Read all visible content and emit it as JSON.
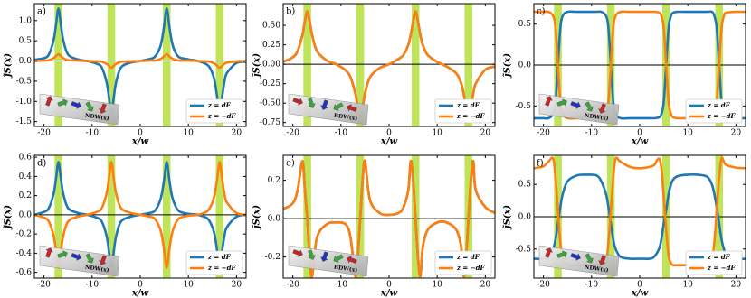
{
  "chart_data": [
    {
      "type": "line",
      "panel_label": "a)",
      "x_label": "x/w",
      "y_label": "j̃S(x)",
      "inset_label": "NDW(x)",
      "x": [
        -22,
        -20,
        -19,
        -18,
        -17.5,
        -17,
        -16.5,
        -16,
        -15,
        -13,
        -11,
        -9,
        -8,
        -7,
        -6.5,
        -6,
        -5.5,
        -5,
        -4,
        -2,
        0,
        2,
        3,
        4,
        4.5,
        5,
        5.5,
        6,
        6.5,
        7,
        8,
        10,
        12,
        14,
        15,
        15.5,
        16,
        16.5,
        17,
        17.5,
        18,
        20,
        22
      ],
      "series": [
        {
          "name": "z = dF",
          "color": "#1f77b4",
          "values": [
            0.03,
            0.07,
            0.16,
            0.52,
            0.9,
            1.3,
            0.9,
            0.52,
            0.16,
            0.04,
            0,
            -0.07,
            -0.16,
            -0.52,
            -0.9,
            -1.3,
            -0.9,
            -0.52,
            -0.16,
            -0.04,
            0,
            0.05,
            0.1,
            0.3,
            0.52,
            0.9,
            1.3,
            0.9,
            0.52,
            0.3,
            0.1,
            0.04,
            0,
            -0.1,
            -0.3,
            -0.52,
            -0.9,
            -1.3,
            -0.9,
            -0.52,
            -0.3,
            -0.05,
            -0.02
          ]
        },
        {
          "name": "z = −dF",
          "color": "#ff7f0e",
          "values": [
            0,
            0.01,
            0.02,
            0.07,
            0.12,
            0.17,
            0.12,
            0.07,
            0.02,
            0.01,
            0,
            -0.01,
            -0.02,
            -0.07,
            -0.12,
            -0.17,
            -0.12,
            -0.07,
            -0.02,
            -0.01,
            0,
            0.01,
            0.01,
            0.04,
            0.07,
            0.12,
            0.17,
            0.12,
            0.07,
            0.04,
            0.01,
            0.01,
            0,
            -0.01,
            -0.04,
            -0.07,
            -0.12,
            -0.17,
            -0.12,
            -0.07,
            -0.04,
            -0.01,
            0
          ]
        }
      ],
      "shaded_regions": [
        [
          -17.8,
          -16.2
        ],
        [
          -6.8,
          -5.2
        ],
        [
          4.7,
          6.3
        ],
        [
          15.7,
          17.3
        ]
      ],
      "shade_color": "#bfe45a",
      "xlim": [
        -22,
        22
      ],
      "xticks": [
        -20,
        -10,
        0,
        10,
        20
      ],
      "ylim": [
        -1.62,
        1.42
      ],
      "yticks": [
        {
          "value": 1,
          "label": "1.0"
        },
        0.5,
        {
          "value": 0,
          "label": "0.0"
        },
        -0.5,
        {
          "value": -1,
          "label": "-1.0"
        },
        -1.5
      ]
    },
    {
      "type": "line",
      "panel_label": "b)",
      "x_label": "x/w",
      "y_label": "j̃S(x)",
      "inset_label": "BDW(x)",
      "x": [
        -22,
        -20,
        -19,
        -18,
        -17.5,
        -17,
        -16.5,
        -16,
        -15,
        -13,
        -11,
        -9,
        -8,
        -7,
        -6.5,
        -6,
        -5.5,
        -5,
        -4,
        -2,
        0,
        2,
        3,
        4,
        4.5,
        5,
        5.5,
        6,
        6.5,
        7,
        8,
        10,
        12,
        14,
        15,
        15.5,
        16,
        16.5,
        17,
        17.5,
        18,
        20,
        22
      ],
      "series": [
        {
          "name": "z = dF",
          "color": "#1f77b4",
          "values": [
            0.03,
            0.09,
            0.17,
            0.38,
            0.55,
            0.68,
            0.55,
            0.38,
            0.17,
            0.05,
            0,
            -0.08,
            -0.17,
            -0.38,
            -0.55,
            -0.68,
            -0.55,
            -0.38,
            -0.17,
            -0.05,
            0,
            0.07,
            0.12,
            0.25,
            0.38,
            0.55,
            0.68,
            0.55,
            0.38,
            0.25,
            0.12,
            0.03,
            -0.03,
            -0.12,
            -0.25,
            -0.38,
            -0.55,
            -0.68,
            -0.55,
            -0.38,
            -0.25,
            -0.07,
            -0.03
          ]
        },
        {
          "name": "z = −dF",
          "color": "#ff7f0e",
          "values": [
            0.03,
            0.09,
            0.17,
            0.38,
            0.55,
            0.68,
            0.55,
            0.38,
            0.17,
            0.05,
            0,
            -0.08,
            -0.17,
            -0.38,
            -0.55,
            -0.68,
            -0.55,
            -0.38,
            -0.17,
            -0.05,
            0,
            0.07,
            0.12,
            0.25,
            0.38,
            0.55,
            0.68,
            0.55,
            0.38,
            0.25,
            0.12,
            0.03,
            -0.03,
            -0.12,
            -0.25,
            -0.38,
            -0.55,
            -0.68,
            -0.55,
            -0.38,
            -0.25,
            -0.07,
            -0.03
          ]
        }
      ],
      "shaded_regions": [
        [
          -17.8,
          -16.2
        ],
        [
          -6.8,
          -5.2
        ],
        [
          4.7,
          6.3
        ],
        [
          15.7,
          17.3
        ]
      ],
      "shade_color": "#bfe45a",
      "xlim": [
        -22,
        22
      ],
      "xticks": [
        -20,
        -10,
        0,
        10,
        20
      ],
      "ylim": [
        -0.8,
        0.78
      ],
      "yticks": [
        {
          "value": 0.5,
          "label": "0.50"
        },
        0.25,
        {
          "value": 0,
          "label": "0.00"
        },
        -0.25,
        {
          "value": -0.5,
          "label": "-0.50"
        },
        -0.75
      ]
    },
    {
      "type": "line",
      "panel_label": "c)",
      "x_label": "x/w",
      "y_label": "j̃S(x)",
      "inset_label": "NDW(x)",
      "x": [
        -22,
        -20,
        -19,
        -18,
        -17.5,
        -17,
        -16.5,
        -16,
        -15,
        -13,
        -11,
        -9,
        -8,
        -7,
        -6.5,
        -6,
        -5.5,
        -5,
        -4,
        -2,
        0,
        2,
        3,
        4,
        4.5,
        5,
        5.5,
        6,
        6.5,
        7,
        8,
        10,
        12,
        14,
        15,
        15.5,
        16,
        16.5,
        17,
        17.5,
        18,
        20,
        22
      ],
      "series": [
        {
          "name": "z = dF",
          "color": "#1f77b4",
          "values": [
            -0.65,
            -0.65,
            -0.65,
            -0.6,
            -0.45,
            0,
            0.45,
            0.6,
            0.65,
            0.65,
            0.65,
            0.65,
            0.65,
            0.6,
            0.45,
            0,
            -0.45,
            -0.6,
            -0.65,
            -0.65,
            -0.65,
            -0.65,
            -0.65,
            -0.64,
            -0.6,
            -0.45,
            0,
            0.45,
            0.6,
            0.64,
            0.65,
            0.65,
            0.65,
            0.65,
            0.65,
            0.6,
            0.45,
            0,
            -0.45,
            -0.6,
            -0.64,
            -0.65,
            -0.65
          ]
        },
        {
          "name": "z = −dF",
          "color": "#ff7f0e",
          "values": [
            0.65,
            0.65,
            0.65,
            0.6,
            0.45,
            0,
            -0.45,
            -0.6,
            -0.65,
            -0.65,
            -0.65,
            -0.65,
            -0.65,
            -0.6,
            -0.45,
            0,
            0.45,
            0.6,
            0.65,
            0.65,
            0.65,
            0.65,
            0.65,
            0.64,
            0.6,
            0.45,
            0,
            -0.45,
            -0.6,
            -0.64,
            -0.65,
            -0.65,
            -0.65,
            -0.65,
            -0.65,
            -0.6,
            -0.45,
            0,
            0.45,
            0.6,
            0.64,
            0.65,
            0.65
          ]
        }
      ],
      "shaded_regions": [
        [
          -17.8,
          -16.2
        ],
        [
          -6.8,
          -5.2
        ],
        [
          4.7,
          6.3
        ],
        [
          15.7,
          17.3
        ]
      ],
      "shade_color": "#bfe45a",
      "xlim": [
        -22,
        22
      ],
      "xticks": [
        -20,
        -10,
        0,
        10,
        20
      ],
      "ylim": [
        -0.75,
        0.75
      ],
      "yticks": [
        0.5,
        {
          "value": 0,
          "label": "0.0"
        },
        -0.5
      ]
    },
    {
      "type": "line",
      "panel_label": "d)",
      "x_label": "x/w",
      "y_label": "j̃S(x)",
      "inset_label": "NDW(x)",
      "x": [
        -22,
        -20,
        -19,
        -18,
        -17.5,
        -17,
        -16.5,
        -16,
        -15,
        -13,
        -11,
        -9,
        -8,
        -7,
        -6.5,
        -6,
        -5.5,
        -5,
        -4,
        -2,
        0,
        2,
        3,
        4,
        4.5,
        5,
        5.5,
        6,
        6.5,
        7,
        8,
        10,
        12,
        14,
        15,
        15.5,
        16,
        16.5,
        17,
        17.5,
        18,
        20,
        22
      ],
      "series": [
        {
          "name": "z = dF",
          "color": "#1f77b4",
          "values": [
            0,
            0.03,
            0.07,
            0.22,
            0.38,
            0.55,
            0.38,
            0.22,
            0.07,
            0.02,
            0,
            -0.03,
            -0.07,
            -0.22,
            -0.38,
            -0.55,
            -0.38,
            -0.22,
            -0.07,
            -0.02,
            0,
            0.02,
            0.04,
            0.13,
            0.22,
            0.38,
            0.55,
            0.38,
            0.22,
            0.13,
            0.04,
            0.01,
            0,
            -0.04,
            -0.13,
            -0.22,
            -0.38,
            -0.55,
            -0.38,
            -0.22,
            -0.13,
            -0.02,
            0
          ]
        },
        {
          "name": "z = −dF",
          "color": "#ff7f0e",
          "values": [
            0,
            -0.03,
            -0.07,
            -0.22,
            -0.38,
            -0.55,
            -0.38,
            -0.22,
            -0.07,
            -0.02,
            0,
            0.03,
            0.07,
            0.22,
            0.38,
            0.55,
            0.38,
            0.22,
            0.07,
            0.02,
            0,
            -0.02,
            -0.04,
            -0.13,
            -0.22,
            -0.38,
            -0.55,
            -0.38,
            -0.22,
            -0.13,
            -0.04,
            -0.01,
            0,
            0.04,
            0.13,
            0.22,
            0.38,
            0.55,
            0.38,
            0.22,
            0.13,
            0.02,
            0
          ]
        }
      ],
      "shaded_regions": [
        [
          -17.8,
          -16.2
        ],
        [
          -6.8,
          -5.2
        ],
        [
          4.7,
          6.3
        ],
        [
          15.7,
          17.3
        ]
      ],
      "shade_color": "#bfe45a",
      "xlim": [
        -22,
        22
      ],
      "xticks": [
        -20,
        -10,
        0,
        10,
        20
      ],
      "ylim": [
        -0.66,
        0.62
      ],
      "yticks": [
        0.6,
        0.4,
        0.2,
        {
          "value": 0,
          "label": "0.0"
        },
        -0.2,
        -0.4,
        -0.6
      ]
    },
    {
      "type": "line",
      "panel_label": "e)",
      "x_label": "x/w",
      "y_label": "j̃S(x)",
      "inset_label": "BDW(x)",
      "x": [
        -22,
        -20,
        -19,
        -18,
        -17.5,
        -17,
        -16.5,
        -16,
        -15,
        -13,
        -11,
        -9,
        -8,
        -7,
        -6.5,
        -6,
        -5.5,
        -5,
        -4,
        -2,
        0,
        2,
        3,
        4,
        4.5,
        5,
        5.5,
        6,
        6.5,
        7,
        8,
        10,
        12,
        14,
        15,
        15.5,
        16,
        16.5,
        17,
        17.5,
        18,
        20,
        22
      ],
      "series": [
        {
          "name": "z = dF",
          "color": "#1f77b4",
          "values": [
            0.05,
            0.08,
            0.15,
            0.3,
            0.15,
            0,
            -0.2,
            -0.3,
            -0.1,
            -0.03,
            -0.02,
            -0.03,
            -0.1,
            -0.3,
            -0.2,
            0,
            0.2,
            0.3,
            0.1,
            0.03,
            0.02,
            0.03,
            0.06,
            0.15,
            0.3,
            0.2,
            0,
            -0.2,
            -0.3,
            -0.15,
            -0.06,
            -0.02,
            -0.02,
            -0.06,
            -0.15,
            -0.3,
            -0.2,
            0,
            0.2,
            0.3,
            0.15,
            0.06,
            0.03
          ]
        },
        {
          "name": "z = −dF",
          "color": "#ff7f0e",
          "values": [
            0.05,
            0.08,
            0.15,
            0.3,
            0.15,
            0,
            -0.2,
            -0.3,
            -0.1,
            -0.03,
            -0.02,
            -0.03,
            -0.1,
            -0.3,
            -0.2,
            0,
            0.2,
            0.3,
            0.1,
            0.03,
            0.02,
            0.03,
            0.06,
            0.15,
            0.3,
            0.2,
            0,
            -0.2,
            -0.3,
            -0.15,
            -0.06,
            -0.02,
            -0.02,
            -0.06,
            -0.15,
            -0.3,
            -0.2,
            0,
            0.2,
            0.3,
            0.15,
            0.06,
            0.03
          ]
        }
      ],
      "shaded_regions": [
        [
          -17.8,
          -16.2
        ],
        [
          -6.8,
          -5.2
        ],
        [
          4.7,
          6.3
        ],
        [
          15.7,
          17.3
        ]
      ],
      "shade_color": "#bfe45a",
      "xlim": [
        -22,
        22
      ],
      "xticks": [
        -20,
        -10,
        0,
        10,
        20
      ],
      "ylim": [
        -0.31,
        0.33
      ],
      "yticks": [
        0.2,
        {
          "value": 0,
          "label": "0.0"
        },
        -0.2
      ]
    },
    {
      "type": "line",
      "panel_label": "f)",
      "x_label": "x/w",
      "y_label": "j̃S(x)",
      "inset_label": "NDW(x)",
      "x": [
        -22,
        -20,
        -19,
        -18,
        -17.5,
        -17,
        -16.5,
        -16,
        -15,
        -13,
        -11,
        -9,
        -8,
        -7,
        -6.5,
        -6,
        -5.5,
        -5,
        -4,
        -2,
        0,
        2,
        3,
        4,
        4.5,
        5,
        5.5,
        6,
        6.5,
        7,
        8,
        10,
        12,
        14,
        15,
        15.5,
        16,
        16.5,
        17,
        17.5,
        18,
        20,
        22
      ],
      "series": [
        {
          "name": "z = dF",
          "color": "#1f77b4",
          "values": [
            -0.65,
            -0.65,
            -0.62,
            -0.5,
            -0.35,
            -0.1,
            0.15,
            0.35,
            0.55,
            0.64,
            0.65,
            0.64,
            0.55,
            0.35,
            0.15,
            -0.1,
            -0.35,
            -0.5,
            -0.62,
            -0.65,
            -0.65,
            -0.65,
            -0.62,
            -0.5,
            -0.35,
            -0.1,
            0.1,
            0.35,
            0.5,
            0.58,
            0.63,
            0.65,
            0.65,
            0.62,
            0.5,
            0.35,
            0.15,
            -0.1,
            -0.35,
            -0.5,
            -0.58,
            -0.65,
            -0.65
          ]
        },
        {
          "name": "z = −dF",
          "color": "#ff7f0e",
          "values": [
            0.75,
            0.78,
            0.85,
            0.9,
            0.6,
            0.1,
            -0.4,
            -0.65,
            -0.75,
            -0.75,
            -0.75,
            -0.75,
            -0.75,
            -0.7,
            -0.4,
            0.1,
            0.6,
            0.9,
            0.85,
            0.77,
            0.75,
            0.77,
            0.8,
            0.9,
            0.75,
            0.3,
            -0.2,
            -0.6,
            -0.72,
            -0.75,
            -0.75,
            -0.75,
            -0.75,
            -0.75,
            -0.7,
            -0.4,
            0.1,
            0.6,
            0.9,
            0.85,
            0.8,
            0.76,
            0.75
          ]
        }
      ],
      "shaded_regions": [
        [
          -17.8,
          -16.2
        ],
        [
          -6.8,
          -5.2
        ],
        [
          4.7,
          6.3
        ],
        [
          15.7,
          17.3
        ]
      ],
      "shade_color": "#bfe45a",
      "xlim": [
        -22,
        22
      ],
      "xticks": [
        -20,
        -10,
        0,
        10,
        20
      ],
      "ylim": [
        -0.95,
        0.95
      ],
      "yticks": [
        0.5,
        {
          "value": 0,
          "label": "0.0"
        },
        -0.5
      ]
    }
  ]
}
